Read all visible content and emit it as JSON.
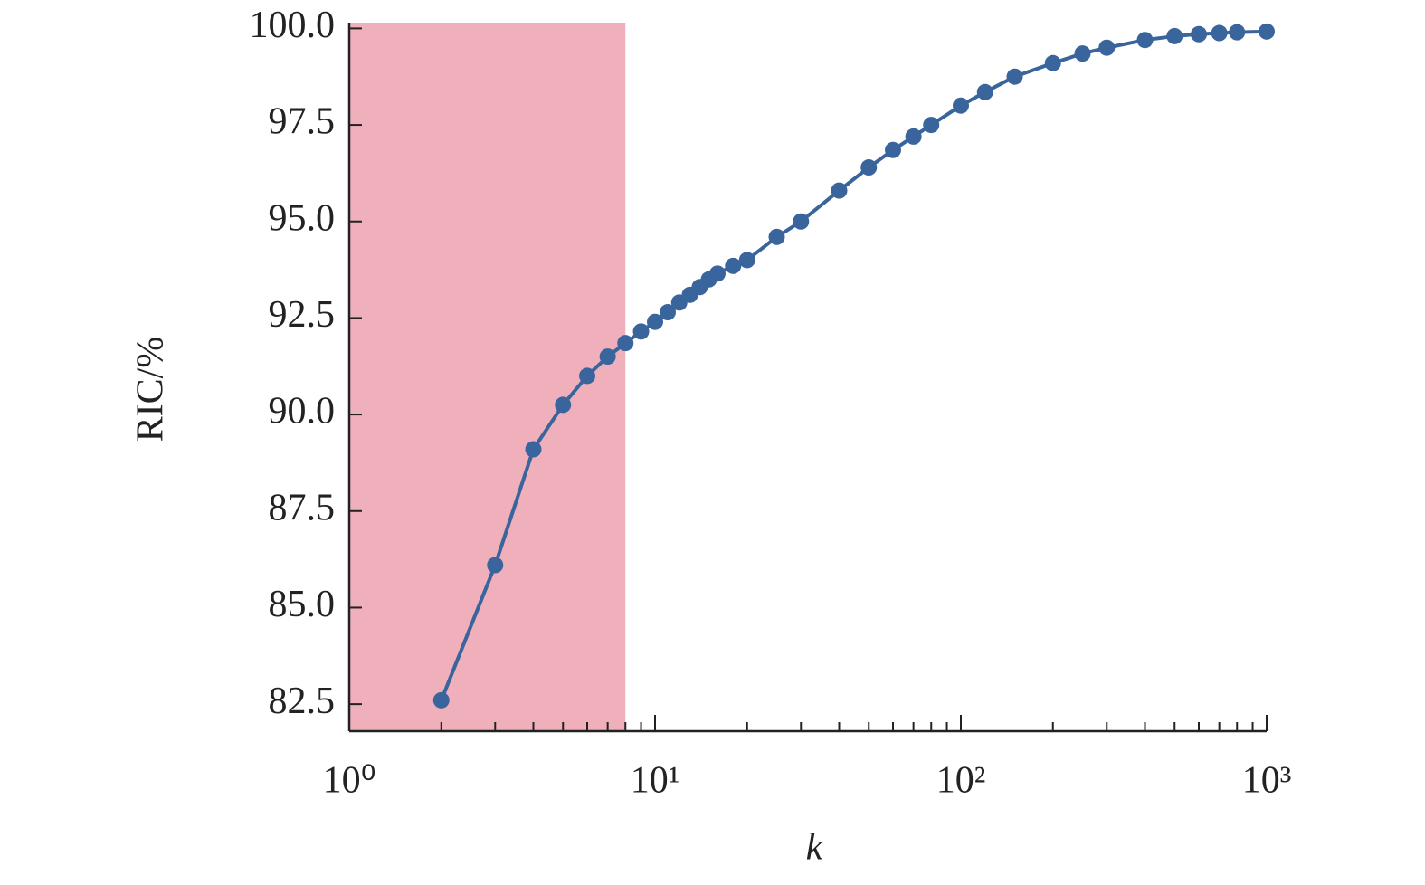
{
  "chart_data": {
    "type": "line",
    "x_label": "k",
    "y_label": "RIC/%",
    "x_scale": "log",
    "x": [
      2,
      3,
      4,
      5,
      6,
      7,
      8,
      9,
      10,
      11,
      12,
      13,
      14,
      15,
      16,
      18,
      20,
      25,
      30,
      40,
      50,
      60,
      70,
      80,
      100,
      120,
      150,
      200,
      250,
      300,
      400,
      500,
      600,
      700,
      800,
      1000
    ],
    "series": [
      {
        "color": "#3a659c",
        "values": [
          82.6,
          86.1,
          89.1,
          90.25,
          91.0,
          91.5,
          91.85,
          92.15,
          92.4,
          92.65,
          92.9,
          93.1,
          93.3,
          93.5,
          93.65,
          93.85,
          94.0,
          94.6,
          95.0,
          95.8,
          96.4,
          96.85,
          97.2,
          97.5,
          98.0,
          98.35,
          98.75,
          99.1,
          99.35,
          99.5,
          99.7,
          99.8,
          99.85,
          99.88,
          99.9,
          99.92
        ]
      }
    ],
    "highlight": {
      "xlim": [
        1,
        8
      ],
      "color": "#efb0bc"
    },
    "xlim": [
      1,
      1000
    ],
    "xticks": [
      {
        "value": 1,
        "label": "10⁰"
      },
      {
        "value": 10,
        "label": "10¹"
      },
      {
        "value": 100,
        "label": "10²"
      },
      {
        "value": 1000,
        "label": "10³"
      }
    ],
    "ylim": [
      81.8,
      100.15
    ],
    "yticks": [
      82.5,
      {
        "value": 85,
        "label": "85.0"
      },
      87.5,
      {
        "value": 90,
        "label": "90.0"
      },
      92.5,
      {
        "value": 95,
        "label": "95.0"
      },
      97.5,
      {
        "value": 100,
        "label": "100.0"
      }
    ]
  }
}
